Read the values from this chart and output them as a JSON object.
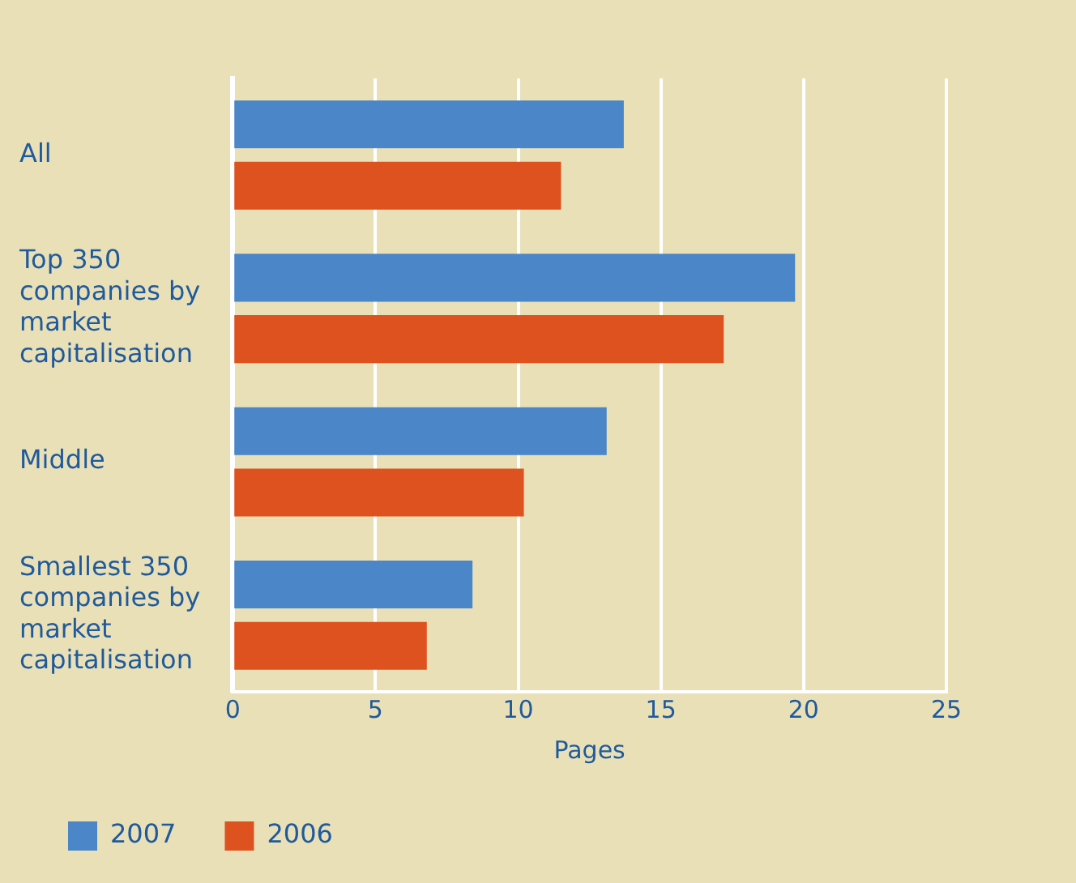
{
  "chart_data": {
    "type": "bar",
    "orientation": "horizontal",
    "xlabel": "Pages",
    "categories": [
      "All",
      "Top 350 companies by market capitalisation",
      "Middle",
      "Smallest 350 companies by market capitalisation"
    ],
    "series": [
      {
        "name": "2007",
        "color": "#4a86c8",
        "values": [
          13.7,
          19.7,
          13.1,
          8.4
        ]
      },
      {
        "name": "2006",
        "color": "#dd521f",
        "values": [
          11.5,
          17.2,
          10.2,
          6.8
        ]
      }
    ],
    "xlim": [
      0,
      25
    ],
    "xticks": [
      0,
      5,
      10,
      15,
      20,
      25
    ],
    "grid": "x",
    "legend": "bottom left"
  }
}
